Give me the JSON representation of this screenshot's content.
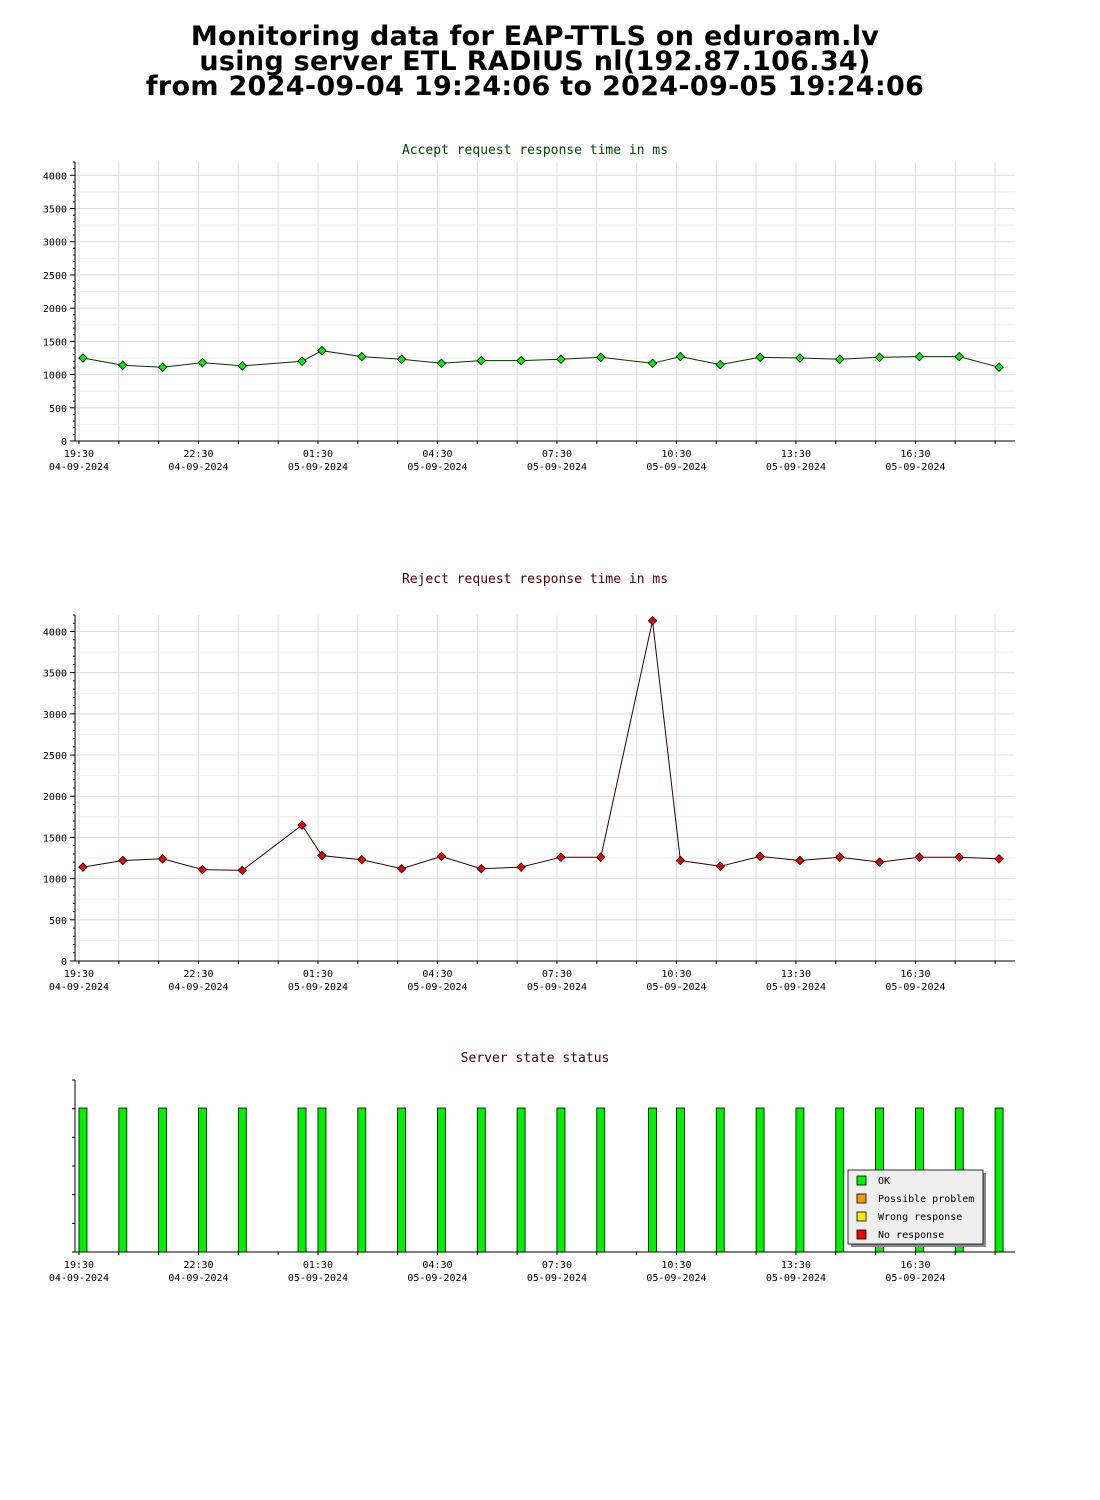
{
  "header": {
    "line1": "Monitoring data for EAP-TTLS on eduroam.lv",
    "line2": "using server ETL RADIUS nl(192.87.106.34)",
    "line3": "from 2024-09-04 19:24:06 to 2024-09-05 19:24:06"
  },
  "x_axis": {
    "range_hours": [
      0,
      23.6
    ],
    "ticks": [
      {
        "hour": 0.1,
        "time": "19:30",
        "date": "04-09-2024"
      },
      {
        "hour": 3.1,
        "time": "22:30",
        "date": "04-09-2024"
      },
      {
        "hour": 6.1,
        "time": "01:30",
        "date": "05-09-2024"
      },
      {
        "hour": 9.1,
        "time": "04:30",
        "date": "05-09-2024"
      },
      {
        "hour": 12.1,
        "time": "07:30",
        "date": "05-09-2024"
      },
      {
        "hour": 15.1,
        "time": "10:30",
        "date": "05-09-2024"
      },
      {
        "hour": 18.1,
        "time": "13:30",
        "date": "05-09-2024"
      },
      {
        "hour": 21.1,
        "time": "16:30",
        "date": "05-09-2024"
      }
    ],
    "sample_hours": [
      0.2,
      1.2,
      2.2,
      3.2,
      4.2,
      5.7,
      6.2,
      7.2,
      8.2,
      9.2,
      10.2,
      11.2,
      12.2,
      13.2,
      14.5,
      15.2,
      16.2,
      17.2,
      18.2,
      19.2,
      20.2,
      21.2,
      22.2,
      23.2
    ]
  },
  "chart_data": [
    {
      "type": "line",
      "title": "Accept request response time in ms",
      "title_color": "#004400",
      "marker_color": "#00ee00",
      "ylim": [
        0,
        4200
      ],
      "yticks": [
        0,
        500,
        1000,
        1500,
        2000,
        2500,
        3000,
        3500,
        4000
      ],
      "grid": true,
      "values": [
        1250,
        1140,
        1110,
        1180,
        1130,
        1200,
        1360,
        1270,
        1230,
        1170,
        1210,
        1210,
        1230,
        1260,
        1170,
        1270,
        1150,
        1260,
        1250,
        1230,
        1260,
        1270,
        1270,
        1110
      ]
    },
    {
      "type": "line",
      "title": "Reject request response time in ms",
      "title_color": "#440000",
      "marker_color": "#ee0000",
      "ylim": [
        0,
        4200
      ],
      "yticks": [
        0,
        500,
        1000,
        1500,
        2000,
        2500,
        3000,
        3500,
        4000
      ],
      "grid": true,
      "values": [
        1140,
        1220,
        1240,
        1110,
        1100,
        1650,
        1280,
        1230,
        1120,
        1270,
        1120,
        1140,
        1260,
        1260,
        4130,
        1220,
        1150,
        1270,
        1220,
        1260,
        1200,
        1260,
        1260,
        1240
      ]
    },
    {
      "type": "bar",
      "title": "Server state status",
      "title_color": "#440000",
      "grid": false,
      "status": [
        "OK",
        "OK",
        "OK",
        "OK",
        "OK",
        "OK",
        "OK",
        "OK",
        "OK",
        "OK",
        "OK",
        "OK",
        "OK",
        "OK",
        "OK",
        "OK",
        "OK",
        "OK",
        "OK",
        "OK",
        "OK",
        "OK",
        "OK",
        "OK"
      ],
      "legend_position": "bottom-right",
      "legend": [
        {
          "label": "OK",
          "color": "#00ee00"
        },
        {
          "label": "Possible problem",
          "color": "#ff9900"
        },
        {
          "label": "Wrong response",
          "color": "#ffee00"
        },
        {
          "label": "No response",
          "color": "#ee0000"
        }
      ]
    }
  ]
}
